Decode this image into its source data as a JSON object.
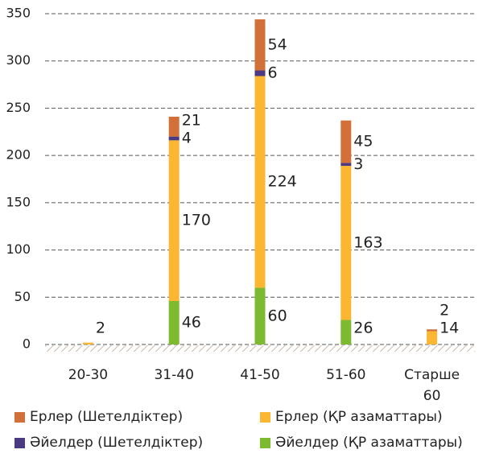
{
  "chart_data": {
    "type": "stacked-bar",
    "categories": [
      "20-30",
      "31-40",
      "41-50",
      "51-60",
      "Старше 60"
    ],
    "series": [
      {
        "name": "Әйелдер (ҚР азаматтары)",
        "color": "#7dba2f",
        "values": [
          null,
          46,
          60,
          26,
          null
        ]
      },
      {
        "name": "Ерлер (ҚР азаматтары)",
        "color": "#fbb731",
        "values": [
          2,
          170,
          224,
          163,
          14
        ]
      },
      {
        "name": "Әйелдер (Шетелдіктер)",
        "color": "#4b3a82",
        "values": [
          null,
          4,
          6,
          3,
          null
        ]
      },
      {
        "name": "Ерлер (Шетелдіктер)",
        "color": "#d2703a",
        "values": [
          null,
          21,
          54,
          45,
          2
        ]
      }
    ],
    "ylim": [
      0,
      350
    ],
    "yticks": [
      0,
      50,
      100,
      150,
      200,
      250,
      300,
      350
    ],
    "grid": true
  }
}
